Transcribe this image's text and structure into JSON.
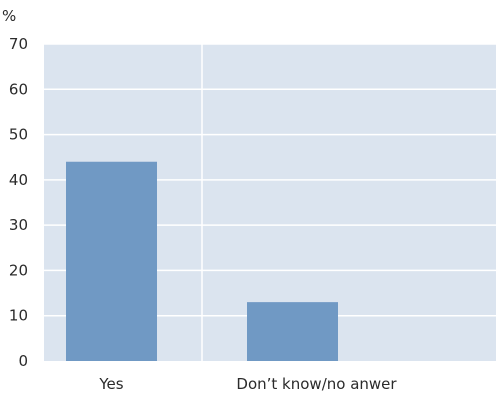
{
  "chart_data": {
    "type": "bar",
    "title": "",
    "xlabel": "",
    "ylabel": "%",
    "categories": [
      "Yes",
      "Don’t know/no anwer"
    ],
    "values": [
      44,
      13
    ],
    "ylim": [
      0,
      70
    ],
    "yticks": [
      0,
      10,
      20,
      30,
      40,
      50,
      60,
      70
    ],
    "grid": true,
    "legend": "none",
    "colors": {
      "plot_background": "#dbe4ef",
      "bar": "#7099c4",
      "gridline": "#ffffff",
      "text": "#2b2b2b"
    }
  }
}
